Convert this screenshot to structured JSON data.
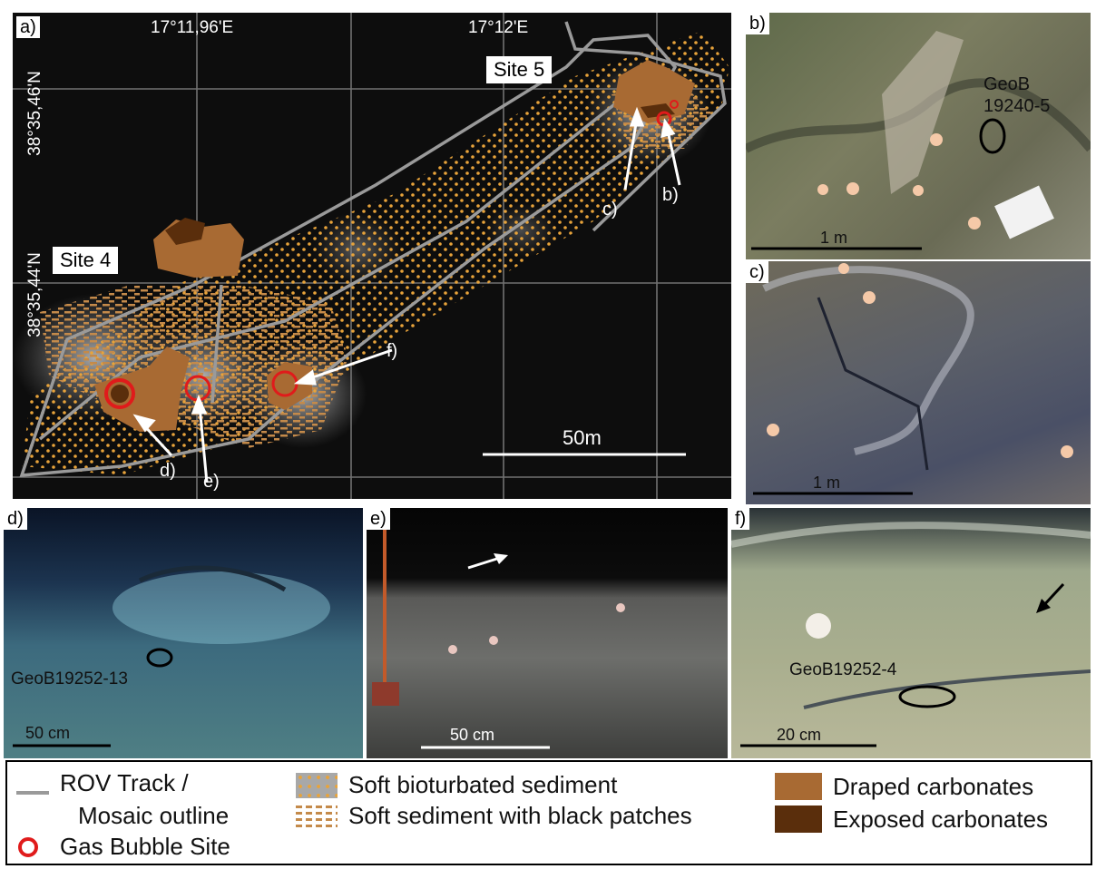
{
  "map": {
    "panel_label": "a)",
    "lon_labels": [
      "17°11,96'E",
      "17°12'E"
    ],
    "lat_labels": [
      "38°35,46'N",
      "38°35,44'N"
    ],
    "site_labels": [
      "Site 5",
      "Site 4"
    ],
    "arrow_labels": [
      "c)",
      "b)",
      "f)",
      "d)",
      "e)"
    ],
    "scale_label": "50m"
  },
  "photos": {
    "b": {
      "label": "b)",
      "sample": [
        "GeoB",
        "19240-5"
      ],
      "scale": "1 m"
    },
    "c": {
      "label": "c)",
      "scale": "1 m"
    },
    "d": {
      "label": "d)",
      "sample": "GeoB19252-13",
      "scale": "50 cm"
    },
    "e": {
      "label": "e)",
      "scale": "50 cm"
    },
    "f": {
      "label": "f)",
      "sample": "GeoB19252-4",
      "scale": "20 cm"
    }
  },
  "legend": {
    "rov": [
      "ROV Track /",
      "Mosaic outline"
    ],
    "gas": "Gas Bubble Site",
    "soft_bio": "Soft bioturbated sediment",
    "soft_black": "Soft sediment with black patches",
    "draped": "Draped carbonates",
    "exposed": "Exposed carbonates"
  },
  "colors": {
    "draped": "#a86a33",
    "exposed": "#5a2e0c",
    "gas": "#e01b1b",
    "dots": "#e8a33a",
    "track": "#9a9a9a"
  }
}
